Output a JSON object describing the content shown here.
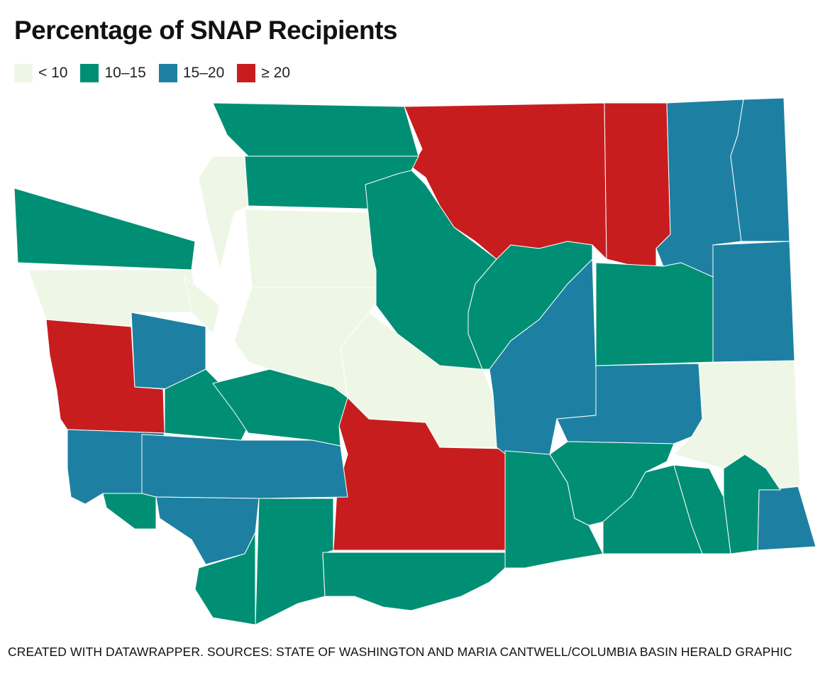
{
  "title": "Percentage of SNAP Recipients",
  "legend": [
    {
      "label": "< 10",
      "color": "#eef7e6"
    },
    {
      "label": "10–15",
      "color": "#008f74"
    },
    {
      "label": "15–20",
      "color": "#1d80a2"
    },
    {
      "label": "≥ 20",
      "color": "#c81d1f"
    }
  ],
  "region_bins": [
    3,
    3,
    3,
    3,
    2,
    2,
    2,
    2,
    2,
    2,
    2,
    2,
    2,
    2,
    0,
    0,
    0,
    0,
    0,
    0,
    0,
    1,
    1,
    1,
    1,
    1,
    1,
    1,
    1,
    1,
    1,
    1,
    1,
    1,
    1,
    1,
    1
  ],
  "source": "CREATED WITH DATAWRAPPER. SOURCES: STATE OF WASHINGTON AND MARIA CANTWELL/COLUMBIA BASIN HERALD GRAPHIC"
}
